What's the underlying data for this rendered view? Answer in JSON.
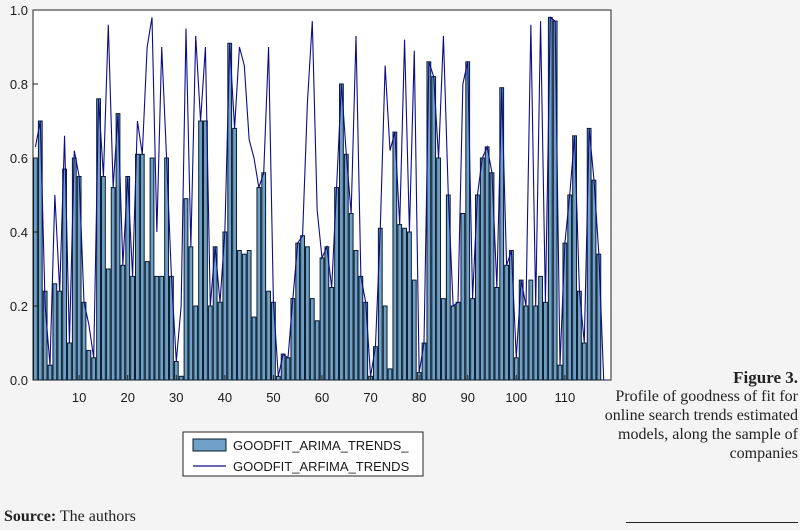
{
  "chart_data": {
    "type": "bar",
    "x": [
      1,
      2,
      3,
      4,
      5,
      6,
      7,
      8,
      9,
      10,
      11,
      12,
      13,
      14,
      15,
      16,
      17,
      18,
      19,
      20,
      21,
      22,
      23,
      24,
      25,
      26,
      27,
      28,
      29,
      30,
      31,
      32,
      33,
      34,
      35,
      36,
      37,
      38,
      39,
      40,
      41,
      42,
      43,
      44,
      45,
      46,
      47,
      48,
      49,
      50,
      51,
      52,
      53,
      54,
      55,
      56,
      57,
      58,
      59,
      60,
      61,
      62,
      63,
      64,
      65,
      66,
      67,
      68,
      69,
      70,
      71,
      72,
      73,
      74,
      75,
      76,
      77,
      78,
      79,
      80,
      81,
      82,
      83,
      84,
      85,
      86,
      87,
      88,
      89,
      90,
      91,
      92,
      93,
      94,
      95,
      96,
      97,
      98,
      99,
      100,
      101,
      102,
      103,
      104,
      105,
      106,
      107,
      108,
      109,
      110,
      111,
      112,
      113,
      114,
      115,
      116,
      117,
      118,
      119
    ],
    "series": [
      {
        "name": "GOODFIT_ARIMA_TRENDS_",
        "render": "bar",
        "values": [
          0.6,
          0.7,
          0.24,
          0.04,
          0.26,
          0.24,
          0.57,
          0.1,
          0.6,
          0.55,
          0.21,
          0.08,
          0.06,
          0.76,
          0.55,
          0.3,
          0.52,
          0.72,
          0.31,
          0.55,
          0.28,
          0.61,
          0.61,
          0.32,
          0.6,
          0.28,
          0.28,
          0.6,
          0.28,
          0.05,
          0.01,
          0.49,
          0.36,
          0.2,
          0.7,
          0.7,
          0.2,
          0.36,
          0.21,
          0.4,
          0.91,
          0.68,
          0.35,
          0.34,
          0.35,
          0.17,
          0.52,
          0.56,
          0.24,
          0.21,
          0.01,
          0.07,
          0.06,
          0.22,
          0.37,
          0.39,
          0.36,
          0.22,
          0.16,
          0.33,
          0.36,
          0.25,
          0.52,
          0.8,
          0.61,
          0.45,
          0.35,
          0.28,
          0.21,
          0.01,
          0.09,
          0.41,
          0.2,
          0.03,
          0.67,
          0.42,
          0.41,
          0.4,
          0.27,
          0.02,
          0.1,
          0.86,
          0.82,
          0.6,
          0.22,
          0.5,
          0.2,
          0.21,
          0.45,
          0.86,
          0.22,
          0.5,
          0.6,
          0.63,
          0.56,
          0.25,
          0.79,
          0.31,
          0.35,
          0.06,
          0.27,
          0.2,
          0.27,
          0.2,
          0.28,
          0.21,
          0.98,
          0.97,
          0.04,
          0.37,
          0.5,
          0.66,
          0.24,
          0.1,
          0.68,
          0.54,
          0.34,
          0.0,
          0.0
        ]
      },
      {
        "name": "GOODFIT_ARFIMA_TRENDS",
        "render": "line",
        "values": [
          0.63,
          0.7,
          0.2,
          0.04,
          0.5,
          0.24,
          0.66,
          0.1,
          0.62,
          0.55,
          0.21,
          0.15,
          0.06,
          0.76,
          0.55,
          0.96,
          0.52,
          0.72,
          0.31,
          0.55,
          0.28,
          0.7,
          0.61,
          0.9,
          0.98,
          0.4,
          0.9,
          0.6,
          0.28,
          0.05,
          0.2,
          0.95,
          0.36,
          0.93,
          0.7,
          0.9,
          0.2,
          0.36,
          0.21,
          0.4,
          0.91,
          0.68,
          0.9,
          0.85,
          0.65,
          0.6,
          0.52,
          0.56,
          0.9,
          0.21,
          0.01,
          0.07,
          0.06,
          0.22,
          0.37,
          0.39,
          0.75,
          0.97,
          0.46,
          0.33,
          0.36,
          0.25,
          0.52,
          0.8,
          0.61,
          0.45,
          0.93,
          0.28,
          0.21,
          0.01,
          0.09,
          0.41,
          0.85,
          0.62,
          0.67,
          0.42,
          0.92,
          0.4,
          0.89,
          0.02,
          0.1,
          0.86,
          0.82,
          0.6,
          0.93,
          0.5,
          0.2,
          0.21,
          0.8,
          0.86,
          0.22,
          0.5,
          0.6,
          0.63,
          0.56,
          0.25,
          0.79,
          0.31,
          0.35,
          0.06,
          0.27,
          0.2,
          0.96,
          0.2,
          0.97,
          0.21,
          0.98,
          0.97,
          0.04,
          0.37,
          0.5,
          0.66,
          0.24,
          0.1,
          0.68,
          0.54,
          0.34,
          0.0,
          0.0
        ]
      }
    ],
    "xticks": [
      10,
      20,
      30,
      40,
      50,
      60,
      70,
      80,
      90,
      100,
      110
    ],
    "yticks": [
      "0.0",
      "0.2",
      "0.4",
      "0.6",
      "0.8",
      "1.0"
    ],
    "ylim": [
      0,
      1
    ],
    "xlim": [
      0.5,
      119.5
    ],
    "grid": false,
    "legend_position": "bottom-center",
    "colors": {
      "bar_fill": "#6fa0c7",
      "bar_edge": "#0a1a2a",
      "line": "#0d0d8a"
    }
  },
  "caption": {
    "figure_label": "Figure 3.",
    "text": "Profile of goodness of fit for online search trends estimated models, along the sample of companies"
  },
  "source": {
    "label": "Source:",
    "text": "The authors"
  }
}
